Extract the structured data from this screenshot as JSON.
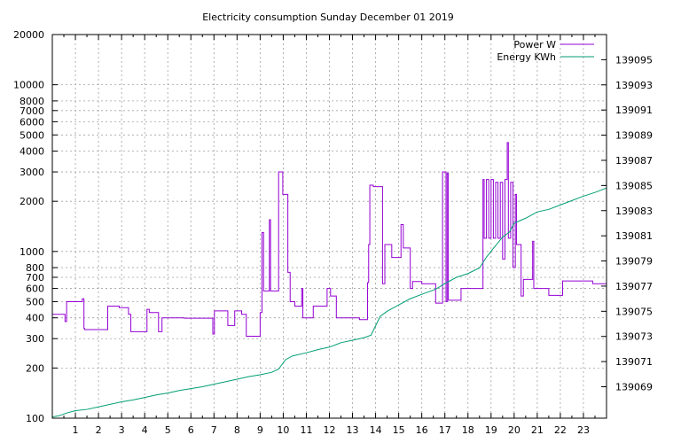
{
  "chart_data": {
    "type": "line",
    "title": "Electricity consumption Sunday December 01 2019",
    "xlabel": "",
    "ylabel": "",
    "xlim": [
      0,
      24
    ],
    "ylim": [
      100,
      20000
    ],
    "yscale": "log",
    "y2lim": [
      139066.5,
      139097
    ],
    "grid": true,
    "legend_position": "top-right",
    "x_ticks": [
      "1",
      "2",
      "3",
      "4",
      "5",
      "6",
      "7",
      "8",
      "9",
      "10",
      "11",
      "12",
      "13",
      "14",
      "15",
      "16",
      "17",
      "18",
      "19",
      "20",
      "21",
      "22",
      "23"
    ],
    "y_ticks": [
      "100",
      "200",
      "300",
      "400",
      "500",
      "600",
      "700",
      "800",
      "1000",
      "2000",
      "3000",
      "4000",
      "5000",
      "6000",
      "7000",
      "8000",
      "10000",
      "20000"
    ],
    "y2_ticks": [
      "139069",
      "139071",
      "139073",
      "139075",
      "139077",
      "139079",
      "139081",
      "139083",
      "139085",
      "139087",
      "139089",
      "139091",
      "139093",
      "139095"
    ],
    "series": [
      {
        "name": "Power W",
        "color": "#9400d3",
        "axis": "left",
        "points": [
          [
            0,
            420
          ],
          [
            0.55,
            420
          ],
          [
            0.55,
            380
          ],
          [
            0.62,
            380
          ],
          [
            0.62,
            500
          ],
          [
            1.3,
            500
          ],
          [
            1.3,
            520
          ],
          [
            1.37,
            520
          ],
          [
            1.37,
            345
          ],
          [
            1.4,
            345
          ],
          [
            1.4,
            340
          ],
          [
            2.4,
            340
          ],
          [
            2.4,
            470
          ],
          [
            2.9,
            470
          ],
          [
            2.9,
            460
          ],
          [
            3.3,
            460
          ],
          [
            3.3,
            420
          ],
          [
            3.4,
            420
          ],
          [
            3.4,
            330
          ],
          [
            4.1,
            330
          ],
          [
            4.1,
            450
          ],
          [
            4.2,
            450
          ],
          [
            4.2,
            430
          ],
          [
            4.6,
            430
          ],
          [
            4.6,
            330
          ],
          [
            4.75,
            330
          ],
          [
            4.75,
            400
          ],
          [
            5.7,
            400
          ],
          [
            5.7,
            398
          ],
          [
            6.95,
            398
          ],
          [
            6.95,
            320
          ],
          [
            7.02,
            320
          ],
          [
            7.02,
            440
          ],
          [
            7.6,
            440
          ],
          [
            7.6,
            360
          ],
          [
            7.9,
            360
          ],
          [
            7.9,
            440
          ],
          [
            8.2,
            440
          ],
          [
            8.2,
            420
          ],
          [
            8.4,
            420
          ],
          [
            8.4,
            310
          ],
          [
            9.0,
            310
          ],
          [
            9.0,
            430
          ],
          [
            9.08,
            430
          ],
          [
            9.08,
            1300
          ],
          [
            9.15,
            1300
          ],
          [
            9.15,
            580
          ],
          [
            9.4,
            580
          ],
          [
            9.4,
            1550
          ],
          [
            9.45,
            1550
          ],
          [
            9.45,
            580
          ],
          [
            9.8,
            580
          ],
          [
            9.8,
            3000
          ],
          [
            9.98,
            3000
          ],
          [
            9.98,
            2200
          ],
          [
            10.2,
            2200
          ],
          [
            10.2,
            750
          ],
          [
            10.3,
            750
          ],
          [
            10.3,
            500
          ],
          [
            10.5,
            500
          ],
          [
            10.5,
            470
          ],
          [
            10.8,
            470
          ],
          [
            10.8,
            600
          ],
          [
            10.85,
            600
          ],
          [
            10.85,
            400
          ],
          [
            11.3,
            400
          ],
          [
            11.3,
            470
          ],
          [
            11.9,
            470
          ],
          [
            11.9,
            600
          ],
          [
            12.05,
            600
          ],
          [
            12.05,
            540
          ],
          [
            12.3,
            540
          ],
          [
            12.3,
            400
          ],
          [
            13.3,
            400
          ],
          [
            13.3,
            390
          ],
          [
            13.65,
            390
          ],
          [
            13.65,
            650
          ],
          [
            13.7,
            650
          ],
          [
            13.7,
            1100
          ],
          [
            13.75,
            1100
          ],
          [
            13.75,
            2500
          ],
          [
            13.9,
            2500
          ],
          [
            13.9,
            2450
          ],
          [
            14.3,
            2450
          ],
          [
            14.3,
            640
          ],
          [
            14.4,
            640
          ],
          [
            14.4,
            1100
          ],
          [
            14.7,
            1100
          ],
          [
            14.7,
            920
          ],
          [
            15.1,
            920
          ],
          [
            15.1,
            1450
          ],
          [
            15.2,
            1450
          ],
          [
            15.2,
            1050
          ],
          [
            15.5,
            1050
          ],
          [
            15.5,
            600
          ],
          [
            15.6,
            600
          ],
          [
            15.6,
            660
          ],
          [
            16.0,
            660
          ],
          [
            16.0,
            640
          ],
          [
            16.6,
            640
          ],
          [
            16.6,
            490
          ],
          [
            16.9,
            490
          ],
          [
            16.9,
            3000
          ],
          [
            17.05,
            3000
          ],
          [
            17.05,
            500
          ],
          [
            17.1,
            500
          ],
          [
            17.1,
            2950
          ],
          [
            17.15,
            2950
          ],
          [
            17.15,
            510
          ],
          [
            17.7,
            510
          ],
          [
            17.7,
            600
          ],
          [
            18.65,
            600
          ],
          [
            18.65,
            2700
          ],
          [
            18.7,
            2700
          ],
          [
            18.7,
            1200
          ],
          [
            18.8,
            1200
          ],
          [
            18.8,
            2700
          ],
          [
            18.9,
            2700
          ],
          [
            18.9,
            1200
          ],
          [
            19.0,
            1200
          ],
          [
            19.0,
            2700
          ],
          [
            19.1,
            2700
          ],
          [
            19.1,
            1200
          ],
          [
            19.2,
            1200
          ],
          [
            19.2,
            2600
          ],
          [
            19.3,
            2600
          ],
          [
            19.3,
            1200
          ],
          [
            19.4,
            1200
          ],
          [
            19.4,
            2600
          ],
          [
            19.5,
            2600
          ],
          [
            19.5,
            900
          ],
          [
            19.6,
            900
          ],
          [
            19.6,
            2700
          ],
          [
            19.7,
            2700
          ],
          [
            19.7,
            4500
          ],
          [
            19.75,
            4500
          ],
          [
            19.75,
            1200
          ],
          [
            19.85,
            1200
          ],
          [
            19.85,
            2600
          ],
          [
            19.95,
            2600
          ],
          [
            19.95,
            800
          ],
          [
            20.05,
            800
          ],
          [
            20.05,
            2200
          ],
          [
            20.1,
            2200
          ],
          [
            20.1,
            1100
          ],
          [
            20.3,
            1100
          ],
          [
            20.3,
            540
          ],
          [
            20.4,
            540
          ],
          [
            20.4,
            680
          ],
          [
            20.8,
            680
          ],
          [
            20.8,
            1150
          ],
          [
            20.85,
            1150
          ],
          [
            20.85,
            600
          ],
          [
            21.5,
            600
          ],
          [
            21.5,
            545
          ],
          [
            22.1,
            545
          ],
          [
            22.1,
            665
          ],
          [
            23.4,
            665
          ],
          [
            23.4,
            640
          ],
          [
            24,
            640
          ]
        ]
      },
      {
        "name": "Energy KWh",
        "color": "#009e73",
        "axis": "right",
        "points": [
          [
            0,
            139066.6
          ],
          [
            0.3,
            139066.7
          ],
          [
            0.6,
            139066.9
          ],
          [
            1,
            139067.1
          ],
          [
            1.5,
            139067.2
          ],
          [
            2,
            139067.4
          ],
          [
            2.5,
            139067.6
          ],
          [
            3,
            139067.8
          ],
          [
            3.5,
            139067.95
          ],
          [
            4,
            139068.15
          ],
          [
            4.5,
            139068.35
          ],
          [
            5,
            139068.5
          ],
          [
            5.5,
            139068.7
          ],
          [
            6,
            139068.85
          ],
          [
            6.5,
            139069.0
          ],
          [
            7,
            139069.2
          ],
          [
            7.5,
            139069.4
          ],
          [
            8,
            139069.6
          ],
          [
            8.5,
            139069.8
          ],
          [
            9,
            139069.95
          ],
          [
            9.5,
            139070.15
          ],
          [
            9.8,
            139070.4
          ],
          [
            10.1,
            139071.15
          ],
          [
            10.4,
            139071.45
          ],
          [
            11,
            139071.7
          ],
          [
            11.5,
            139071.95
          ],
          [
            12,
            139072.15
          ],
          [
            12.5,
            139072.5
          ],
          [
            13,
            139072.7
          ],
          [
            13.5,
            139072.9
          ],
          [
            13.8,
            139073.1
          ],
          [
            14.2,
            139074.6
          ],
          [
            14.5,
            139075.0
          ],
          [
            15,
            139075.5
          ],
          [
            15.5,
            139076.0
          ],
          [
            16,
            139076.35
          ],
          [
            16.6,
            139076.75
          ],
          [
            17,
            139077.2
          ],
          [
            17.5,
            139077.7
          ],
          [
            18,
            139078.0
          ],
          [
            18.5,
            139078.45
          ],
          [
            18.8,
            139079.3
          ],
          [
            19.1,
            139080.0
          ],
          [
            19.5,
            139080.9
          ],
          [
            19.8,
            139081.3
          ],
          [
            20.0,
            139082.0
          ],
          [
            20.5,
            139082.4
          ],
          [
            21,
            139082.9
          ],
          [
            21.5,
            139083.1
          ],
          [
            22,
            139083.45
          ],
          [
            22.5,
            139083.8
          ],
          [
            23,
            139084.15
          ],
          [
            23.5,
            139084.45
          ],
          [
            24,
            139084.8
          ]
        ]
      }
    ]
  }
}
